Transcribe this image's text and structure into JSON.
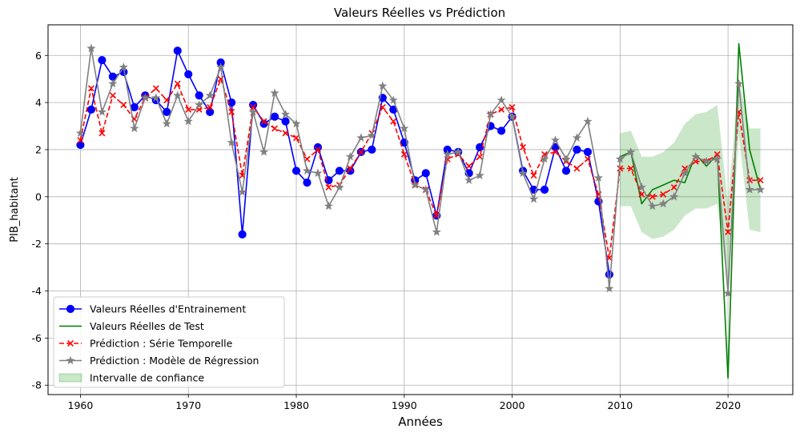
{
  "chart_data": {
    "type": "line",
    "title": "Valeurs Réelles vs Prédiction",
    "xlabel": "Années",
    "ylabel": "PIB_habitant",
    "xlim": [
      1957,
      2026
    ],
    "ylim": [
      -8.4,
      7.3
    ],
    "xticks": [
      1960,
      1970,
      1980,
      1990,
      2000,
      2010,
      2020
    ],
    "yticks": [
      -8,
      -6,
      -4,
      -2,
      0,
      2,
      4,
      6
    ],
    "grid": true,
    "legend_position": "lower-left",
    "series": [
      {
        "name": "Valeurs Réelles d'Entrainement",
        "color": "#0000ff",
        "style": "solid",
        "marker": "circle",
        "x": [
          1960,
          1961,
          1962,
          1963,
          1964,
          1965,
          1966,
          1967,
          1968,
          1969,
          1970,
          1971,
          1972,
          1973,
          1974,
          1975,
          1976,
          1977,
          1978,
          1979,
          1980,
          1981,
          1982,
          1983,
          1984,
          1985,
          1986,
          1987,
          1988,
          1989,
          1990,
          1991,
          1992,
          1993,
          1994,
          1995,
          1996,
          1997,
          1998,
          1999,
          2000,
          2001,
          2002,
          2003,
          2004,
          2005,
          2006,
          2007,
          2008,
          2009
        ],
        "y": [
          2.2,
          3.7,
          5.8,
          5.1,
          5.3,
          3.8,
          4.3,
          4.1,
          3.6,
          6.2,
          5.2,
          4.3,
          3.6,
          5.7,
          4.0,
          -1.6,
          3.9,
          3.1,
          3.4,
          3.2,
          1.1,
          0.6,
          2.1,
          0.7,
          1.1,
          1.1,
          1.9,
          2.0,
          4.2,
          3.7,
          2.3,
          0.7,
          1.0,
          -0.8,
          2.0,
          1.9,
          1.0,
          2.1,
          3.0,
          2.8,
          3.4,
          1.1,
          0.3,
          0.3,
          2.1,
          1.1,
          2.0,
          1.9,
          -0.2,
          -3.3
        ]
      },
      {
        "name": "Valeurs Réelles de Test",
        "color": "#008000",
        "style": "solid",
        "marker": "none",
        "x": [
          2010,
          2011,
          2012,
          2013,
          2014,
          2015,
          2016,
          2017,
          2018,
          2019,
          2020,
          2021,
          2022,
          2023
        ],
        "y": [
          1.7,
          1.9,
          -0.3,
          0.3,
          0.5,
          0.7,
          0.6,
          1.8,
          1.3,
          1.8,
          -7.7,
          6.5,
          2.0,
          0.3
        ]
      },
      {
        "name": "Prédiction : Série Temporelle",
        "color": "#ff0000",
        "style": "dashed",
        "marker": "x",
        "x": [
          1960,
          1961,
          1962,
          1963,
          1964,
          1965,
          1966,
          1967,
          1968,
          1969,
          1970,
          1971,
          1972,
          1973,
          1974,
          1975,
          1976,
          1977,
          1978,
          1979,
          1980,
          1981,
          1982,
          1983,
          1984,
          1985,
          1986,
          1987,
          1988,
          1989,
          1990,
          1991,
          1992,
          1993,
          1994,
          1995,
          1996,
          1997,
          1998,
          1999,
          2000,
          2001,
          2002,
          2003,
          2004,
          2005,
          2006,
          2007,
          2008,
          2009,
          2010,
          2011,
          2012,
          2013,
          2014,
          2015,
          2016,
          2017,
          2018,
          2019,
          2020,
          2021,
          2022,
          2023
        ],
        "y": [
          2.4,
          4.6,
          2.7,
          4.3,
          3.9,
          3.3,
          4.2,
          4.6,
          4.1,
          4.8,
          3.7,
          3.7,
          3.8,
          5.0,
          3.6,
          0.9,
          3.8,
          3.2,
          2.9,
          2.7,
          2.5,
          1.6,
          2.0,
          0.4,
          0.5,
          1.2,
          1.9,
          2.7,
          3.8,
          3.2,
          1.8,
          0.5,
          0.3,
          -0.8,
          1.6,
          1.8,
          1.3,
          1.7,
          3.5,
          3.7,
          3.8,
          2.1,
          0.9,
          1.8,
          1.9,
          1.5,
          1.2,
          1.6,
          0.1,
          -2.6,
          1.2,
          1.2,
          0.1,
          0.0,
          0.1,
          0.4,
          1.2,
          1.5,
          1.5,
          1.8,
          -1.5,
          3.6,
          0.7,
          0.7
        ]
      },
      {
        "name": "Prédiction : Modèle de Régression",
        "color": "#808080",
        "style": "solid",
        "marker": "star",
        "x": [
          1960,
          1961,
          1962,
          1963,
          1964,
          1965,
          1966,
          1967,
          1968,
          1969,
          1970,
          1971,
          1972,
          1973,
          1974,
          1975,
          1976,
          1977,
          1978,
          1979,
          1980,
          1981,
          1982,
          1983,
          1984,
          1985,
          1986,
          1987,
          1988,
          1989,
          1990,
          1991,
          1992,
          1993,
          1994,
          1995,
          1996,
          1997,
          1998,
          1999,
          2000,
          2001,
          2002,
          2003,
          2004,
          2005,
          2006,
          2007,
          2008,
          2009,
          2010,
          2011,
          2012,
          2013,
          2014,
          2015,
          2016,
          2017,
          2018,
          2019,
          2020,
          2021,
          2022,
          2023
        ],
        "y": [
          2.7,
          6.3,
          3.6,
          4.8,
          5.5,
          2.9,
          4.2,
          4.2,
          3.1,
          4.3,
          3.2,
          3.9,
          4.3,
          5.5,
          2.3,
          0.2,
          3.6,
          1.9,
          4.4,
          3.5,
          3.1,
          1.1,
          1.0,
          -0.4,
          0.4,
          1.7,
          2.5,
          2.6,
          4.7,
          4.1,
          2.9,
          0.5,
          0.3,
          -1.5,
          1.8,
          1.9,
          0.7,
          0.9,
          3.5,
          4.1,
          3.4,
          1.0,
          -0.1,
          1.6,
          2.4,
          1.6,
          2.5,
          3.2,
          0.8,
          -3.9,
          1.6,
          1.9,
          0.4,
          -0.4,
          -0.3,
          0.0,
          1.0,
          1.7,
          1.5,
          1.6,
          -4.1,
          4.8,
          0.3,
          0.3
        ]
      }
    ],
    "confidence_interval": {
      "name": "Intervalle de confiance",
      "color": "#2ca02c",
      "x": [
        2010,
        2011,
        2012,
        2013,
        2014,
        2015,
        2016,
        2017,
        2018,
        2019,
        2020,
        2021,
        2022,
        2023
      ],
      "lower": [
        -0.4,
        -0.4,
        -1.5,
        -1.8,
        -1.7,
        -1.4,
        -0.8,
        -0.5,
        -0.5,
        -0.3,
        -3.9,
        2.6,
        -1.4,
        -1.5
      ],
      "upper": [
        2.7,
        2.8,
        1.7,
        1.7,
        1.9,
        2.3,
        3.1,
        3.5,
        3.6,
        3.9,
        -0.3,
        5.0,
        2.9,
        2.9
      ]
    }
  }
}
